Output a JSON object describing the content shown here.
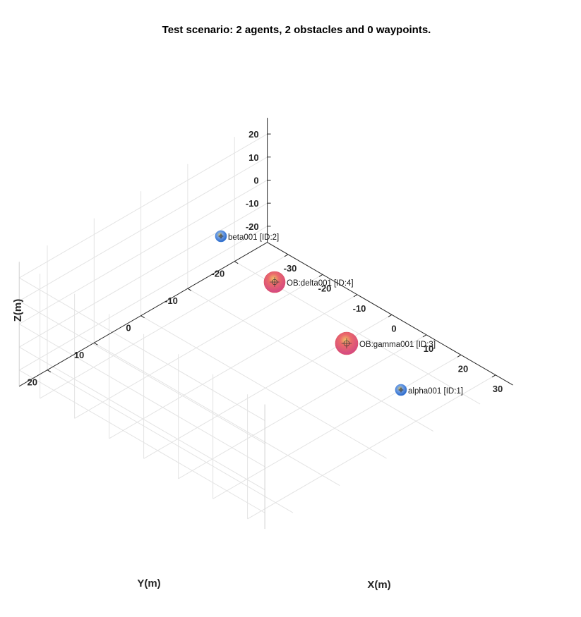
{
  "chart_data": {
    "type": "scatter",
    "title": "Test scenario: 2 agents, 2 obstacles and 0 waypoints.",
    "xlabel": "X(m)",
    "ylabel": "Y(m)",
    "zlabel": "Z(m)",
    "xlim": [
      -30,
      30
    ],
    "ylim": [
      -20,
      20
    ],
    "zlim": [
      -20,
      20
    ],
    "x_ticks": [
      "-30",
      "-20",
      "-10",
      "0",
      "10",
      "20",
      "30"
    ],
    "y_ticks": [
      "-20",
      "-10",
      "0",
      "10",
      "20"
    ],
    "z_ticks": [
      "-20",
      "-10",
      "0",
      "10",
      "20"
    ],
    "grid": true,
    "view": "3d",
    "objects": [
      {
        "label": "beta001 [ID:2]",
        "kind": "agent",
        "color": "#3d7fd9"
      },
      {
        "label": "OB:delta001 [ID:4]",
        "kind": "obstacle",
        "color": "#e0505a"
      },
      {
        "label": "OB:gamma001 [ID:3]",
        "kind": "obstacle",
        "color": "#e0505a"
      },
      {
        "label": "alpha001 [ID:1]",
        "kind": "agent",
        "color": "#3d7fd9"
      }
    ]
  }
}
